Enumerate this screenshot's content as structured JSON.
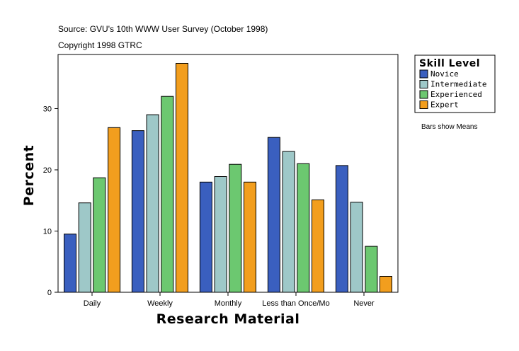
{
  "source_line": "Source: GVU's 10th WWW User Survey (October 1998)",
  "copyright_line": "Copyright 1998 GTRC",
  "note": "Bars show Means",
  "chart_data": {
    "type": "bar",
    "title": "",
    "xlabel": "Research Material",
    "ylabel": "Percent",
    "ylim": [
      0,
      38
    ],
    "yticks": [
      0,
      10,
      20,
      30
    ],
    "categories": [
      "Daily",
      "Weekly",
      "Monthly",
      "Less than Once/Mo",
      "Never"
    ],
    "legend_title": "Skill Level",
    "series": [
      {
        "name": "Novice",
        "color": "#3a5fbf",
        "values": [
          9.5,
          26.4,
          18.0,
          25.3,
          20.7
        ]
      },
      {
        "name": "Intermediate",
        "color": "#9ec8c8",
        "values": [
          14.6,
          29.0,
          18.9,
          23.0,
          14.7
        ]
      },
      {
        "name": "Experienced",
        "color": "#6cc870",
        "values": [
          18.7,
          32.0,
          20.9,
          21.0,
          7.5
        ]
      },
      {
        "name": "Expert",
        "color": "#f29e1e",
        "values": [
          26.9,
          37.4,
          18.0,
          15.1,
          2.6
        ]
      }
    ]
  }
}
